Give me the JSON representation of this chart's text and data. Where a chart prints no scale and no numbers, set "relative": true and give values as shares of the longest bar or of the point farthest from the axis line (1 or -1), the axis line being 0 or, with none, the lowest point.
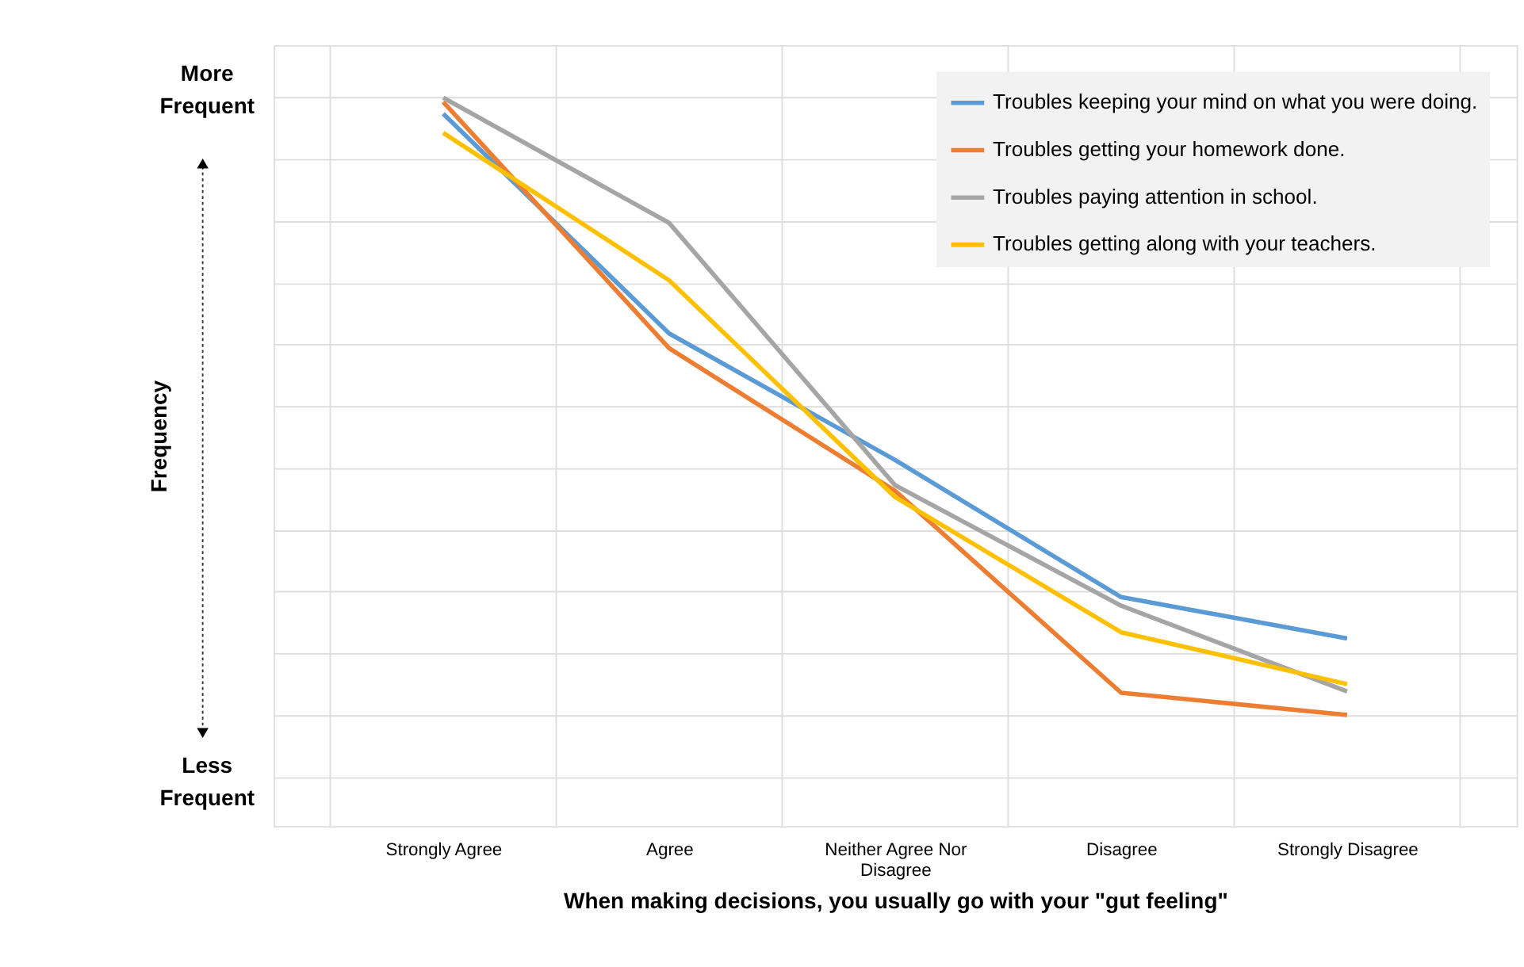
{
  "chart_data": {
    "type": "line",
    "relative": true,
    "xlabel": "When making decisions, you usually go with your \"gut feeling\"",
    "ylabel": "Frequency",
    "annotations": [
      "More Frequent",
      "Less Frequent"
    ],
    "categories": [
      "Strongly Agree",
      "Agree",
      "Neither Agree Nor Disagree",
      "Disagree",
      "Strongly Disagree"
    ],
    "series": [
      {
        "name": "Troubles keeping your mind on what you were doing.",
        "color": "#5b9bd5",
        "values": [
          0.974,
          0.618,
          0.413,
          0.191,
          0.124
        ]
      },
      {
        "name": "Troubles getting your homework done.",
        "color": "#ed7d31",
        "values": [
          0.993,
          0.594,
          0.363,
          0.036,
          0.0
        ]
      },
      {
        "name": "Troubles paying attention in school.",
        "color": "#a5a5a5",
        "values": [
          1.0,
          0.797,
          0.372,
          0.177,
          0.038
        ]
      },
      {
        "name": "Troubles getting along with your teachers.",
        "color": "#ffc000",
        "values": [
          0.943,
          0.704,
          0.353,
          0.134,
          0.05
        ]
      }
    ],
    "grid": true,
    "legend": "top right",
    "marker": "none",
    "line_style": "solid"
  }
}
